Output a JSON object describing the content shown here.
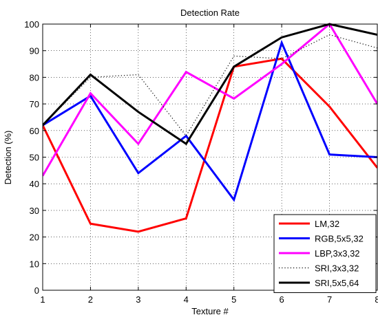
{
  "chart_data": {
    "type": "line",
    "title": "Detection Rate",
    "xlabel": "Texture #",
    "ylabel": "Detection (%)",
    "x": [
      1,
      2,
      3,
      4,
      5,
      6,
      7,
      8
    ],
    "xlim": [
      1,
      8
    ],
    "ylim": [
      0,
      100
    ],
    "xticks": [
      "1",
      "2",
      "3",
      "4",
      "5",
      "6",
      "7",
      "8"
    ],
    "yticks": [
      "0",
      "10",
      "20",
      "30",
      "40",
      "50",
      "60",
      "70",
      "80",
      "90",
      "100"
    ],
    "grid": true,
    "legend_position": "bottom-right",
    "series": [
      {
        "name": "LM,32",
        "color": "#ff0000",
        "style": "solid",
        "values": [
          62,
          25,
          22,
          27,
          84,
          87,
          69,
          46
        ]
      },
      {
        "name": "RGB,5x5,32",
        "color": "#0000ff",
        "style": "solid",
        "values": [
          62,
          73,
          44,
          58,
          34,
          93,
          51,
          50
        ]
      },
      {
        "name": "LBP,3x3,32",
        "color": "#ff00ff",
        "style": "solid",
        "values": [
          43,
          74,
          55,
          82,
          72,
          85,
          100,
          70
        ]
      },
      {
        "name": "SRI,3x3,32",
        "color": "#000000",
        "style": "dotted",
        "values": [
          62,
          80,
          81,
          58,
          88,
          87,
          96,
          91
        ]
      },
      {
        "name": "SRI,5x5,64",
        "color": "#000000",
        "style": "solid",
        "values": [
          62,
          81,
          67,
          55,
          84,
          95,
          100,
          96
        ]
      }
    ]
  }
}
